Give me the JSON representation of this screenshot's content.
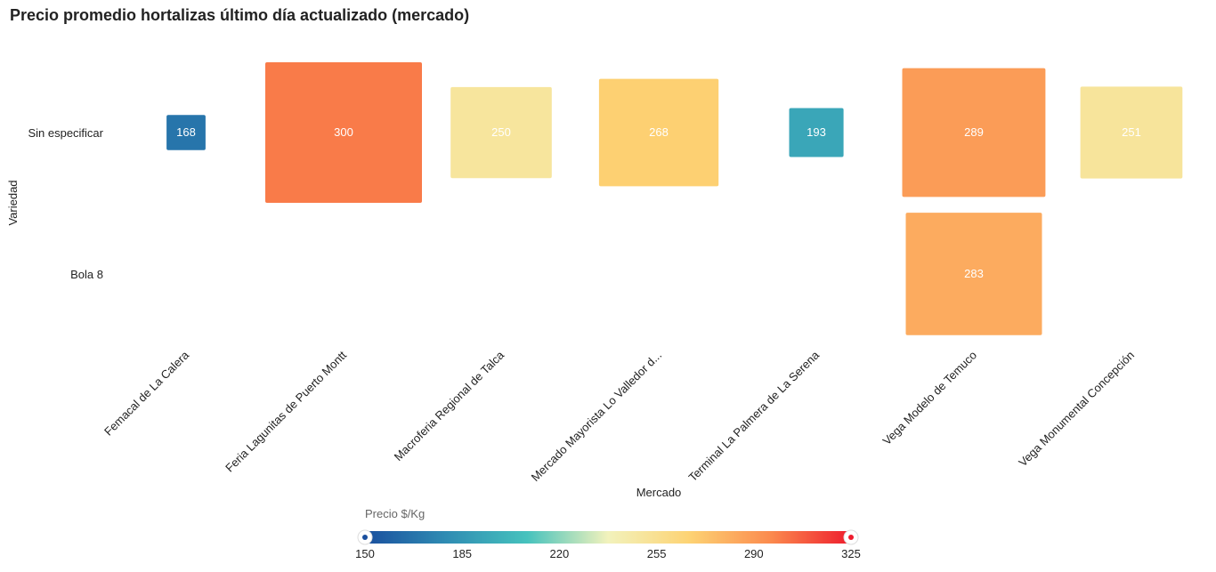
{
  "chart_data": {
    "type": "heatmap",
    "title": "Precio promedio hortalizas último día actualizado (mercado)",
    "xlabel": "Mercado",
    "ylabel": "Variedad",
    "x_categories": [
      "Femacal de La Calera",
      "Feria Lagunitas de Puerto Montt",
      "Macroferia Regional de Talca",
      "Mercado Mayorista Lo Valledor d...",
      "Terminal La Palmera de La Serena",
      "Vega Modelo de Temuco",
      "Vega Monumental Concepción"
    ],
    "y_categories": [
      "Sin especificar",
      "Bola 8"
    ],
    "cells": [
      {
        "x": "Femacal de La Calera",
        "y": "Sin especificar",
        "value": 168
      },
      {
        "x": "Feria Lagunitas de Puerto Montt",
        "y": "Sin especificar",
        "value": 300
      },
      {
        "x": "Macroferia Regional de Talca",
        "y": "Sin especificar",
        "value": 250
      },
      {
        "x": "Mercado Mayorista Lo Valledor d...",
        "y": "Sin especificar",
        "value": 268
      },
      {
        "x": "Terminal La Palmera de La Serena",
        "y": "Sin especificar",
        "value": 193
      },
      {
        "x": "Vega Modelo de Temuco",
        "y": "Sin especificar",
        "value": 289
      },
      {
        "x": "Vega Monumental Concepción",
        "y": "Sin especificar",
        "value": 251
      },
      {
        "x": "Vega Modelo de Temuco",
        "y": "Bola 8",
        "value": 283
      }
    ],
    "color_scale": {
      "title": "Precio $/Kg",
      "min": 150,
      "max": 325,
      "ticks": [
        150,
        185,
        220,
        255,
        290,
        325
      ],
      "stops": [
        "#1a4f9e",
        "#2f8cb3",
        "#46c2bd",
        "#f2f2bc",
        "#fdd374",
        "#fb8b4e",
        "#ee1c2d"
      ]
    },
    "grid": false,
    "legend_position": "bottom"
  }
}
